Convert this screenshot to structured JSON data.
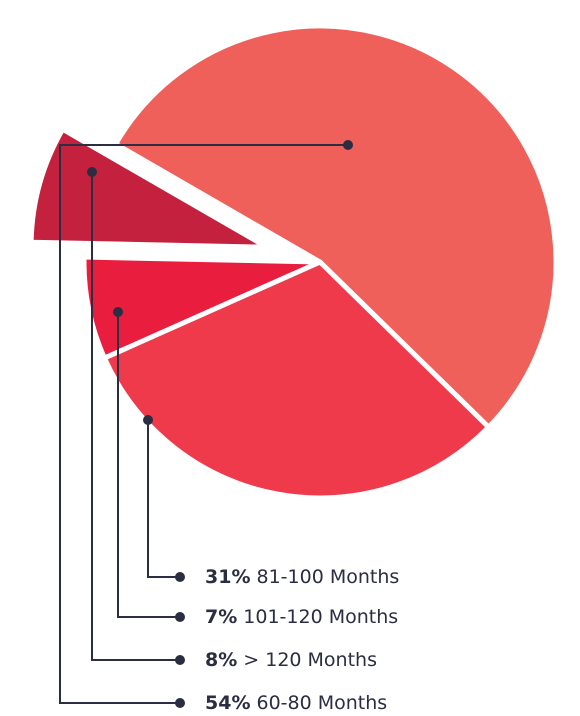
{
  "chart_data": {
    "type": "pie",
    "categories": [
      "60-80 Months",
      "81-100 Months",
      "101-120 Months",
      "> 120 Months"
    ],
    "values": [
      54,
      31,
      7,
      8
    ],
    "value_labels": [
      "54%",
      "31%",
      "7%",
      "8%"
    ],
    "colors": [
      "#f0605a",
      "#ee3a4b",
      "#e91e3e",
      "#c4213f"
    ]
  }
}
